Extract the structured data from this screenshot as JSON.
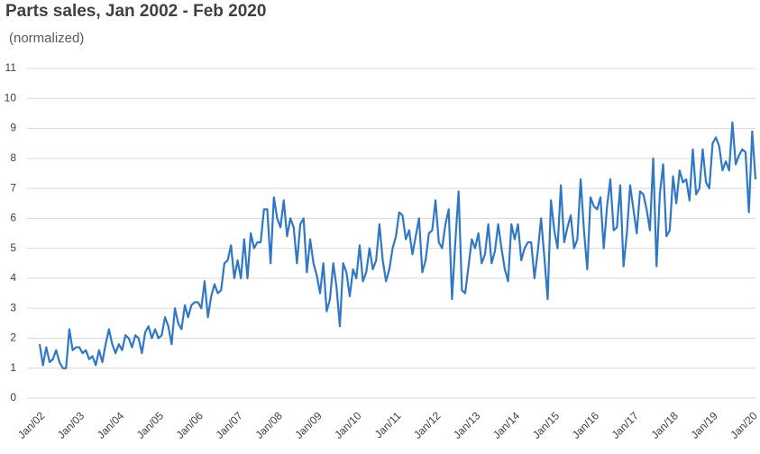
{
  "chart_data": {
    "type": "line",
    "title": "Parts sales, Jan 2002 - Feb 2020",
    "subtitle": "(normalized)",
    "color": "#2f78c8",
    "grid": true,
    "ylim": [
      0,
      11
    ],
    "yticks": [
      0,
      1,
      2,
      3,
      4,
      5,
      6,
      7,
      8,
      9,
      10,
      11
    ],
    "categories": [
      "Jan/02",
      null,
      null,
      null,
      null,
      null,
      null,
      null,
      null,
      null,
      null,
      null,
      "Jan/03",
      null,
      null,
      null,
      null,
      null,
      null,
      null,
      null,
      null,
      null,
      null,
      "Jan/04",
      null,
      null,
      null,
      null,
      null,
      null,
      null,
      null,
      null,
      null,
      null,
      "Jan/05",
      null,
      null,
      null,
      null,
      null,
      null,
      null,
      null,
      null,
      null,
      null,
      "Jan/06",
      null,
      null,
      null,
      null,
      null,
      null,
      null,
      null,
      null,
      null,
      null,
      "Jan/07",
      null,
      null,
      null,
      null,
      null,
      null,
      null,
      null,
      null,
      null,
      null,
      "Jan/08",
      null,
      null,
      null,
      null,
      null,
      null,
      null,
      null,
      null,
      null,
      null,
      "Jan/09",
      null,
      null,
      null,
      null,
      null,
      null,
      null,
      null,
      null,
      null,
      null,
      "Jan/10",
      null,
      null,
      null,
      null,
      null,
      null,
      null,
      null,
      null,
      null,
      null,
      "Jan/11",
      null,
      null,
      null,
      null,
      null,
      null,
      null,
      null,
      null,
      null,
      null,
      "Jan/12",
      null,
      null,
      null,
      null,
      null,
      null,
      null,
      null,
      null,
      null,
      null,
      "Jan/13",
      null,
      null,
      null,
      null,
      null,
      null,
      null,
      null,
      null,
      null,
      null,
      "Jan/14",
      null,
      null,
      null,
      null,
      null,
      null,
      null,
      null,
      null,
      null,
      null,
      "Jan/15",
      null,
      null,
      null,
      null,
      null,
      null,
      null,
      null,
      null,
      null,
      null,
      "Jan/16",
      null,
      null,
      null,
      null,
      null,
      null,
      null,
      null,
      null,
      null,
      null,
      "Jan/17",
      null,
      null,
      null,
      null,
      null,
      null,
      null,
      null,
      null,
      null,
      null,
      "Jan/18",
      null,
      null,
      null,
      null,
      null,
      null,
      null,
      null,
      null,
      null,
      null,
      "Jan/19",
      null,
      null,
      null,
      null,
      null,
      null,
      null,
      null,
      null,
      null,
      null,
      "Jan/20",
      null
    ],
    "values": [
      1.8,
      1.1,
      1.7,
      1.2,
      1.3,
      1.6,
      1.2,
      1.0,
      1.0,
      2.3,
      1.6,
      1.7,
      1.7,
      1.5,
      1.6,
      1.3,
      1.4,
      1.1,
      1.6,
      1.2,
      1.8,
      2.3,
      1.8,
      1.5,
      1.8,
      1.6,
      2.1,
      2.0,
      1.7,
      2.1,
      2.0,
      1.5,
      2.2,
      2.4,
      2.0,
      2.3,
      2.0,
      2.1,
      2.7,
      2.4,
      1.8,
      3.0,
      2.5,
      2.3,
      3.1,
      2.7,
      3.1,
      3.2,
      3.2,
      3.0,
      3.9,
      2.7,
      3.4,
      3.8,
      3.5,
      3.6,
      4.5,
      4.6,
      5.1,
      4.0,
      4.6,
      4.0,
      5.3,
      4.0,
      5.5,
      5.0,
      5.2,
      5.2,
      6.3,
      6.3,
      4.5,
      6.7,
      6.0,
      5.7,
      6.6,
      5.4,
      6.0,
      5.7,
      4.5,
      5.8,
      6.0,
      4.2,
      5.3,
      4.5,
      4.1,
      3.5,
      4.5,
      2.9,
      3.3,
      4.5,
      3.7,
      2.4,
      4.5,
      4.2,
      3.4,
      4.3,
      4.0,
      5.1,
      3.9,
      4.2,
      5.0,
      4.3,
      4.6,
      5.8,
      4.6,
      3.9,
      4.3,
      5.0,
      5.4,
      6.2,
      6.1,
      5.3,
      5.6,
      4.8,
      5.4,
      6.0,
      4.2,
      4.6,
      5.5,
      5.6,
      6.6,
      5.2,
      5.0,
      5.8,
      6.3,
      3.3,
      5.2,
      6.9,
      3.6,
      3.5,
      4.4,
      5.3,
      5.0,
      5.5,
      4.5,
      4.8,
      5.8,
      4.5,
      4.9,
      5.8,
      5.0,
      4.3,
      3.9,
      5.8,
      5.3,
      5.8,
      4.6,
      5.0,
      5.2,
      5.2,
      4.0,
      4.9,
      6.0,
      4.7,
      3.3,
      6.6,
      5.6,
      5.0,
      7.1,
      5.2,
      5.7,
      6.1,
      5.0,
      5.3,
      7.3,
      5.6,
      4.3,
      6.7,
      6.4,
      6.3,
      6.7,
      5.0,
      6.4,
      7.3,
      5.6,
      5.7,
      7.1,
      4.4,
      5.5,
      7.1,
      6.3,
      5.5,
      6.9,
      6.8,
      6.3,
      5.6,
      8.0,
      4.4,
      6.8,
      7.8,
      5.4,
      5.6,
      7.4,
      6.5,
      7.6,
      7.2,
      7.3,
      6.6,
      8.3,
      6.8,
      7.0,
      8.3,
      7.2,
      7.0,
      8.5,
      8.7,
      8.4,
      7.6,
      7.9,
      7.6,
      9.2,
      7.8,
      8.1,
      8.3,
      8.2,
      6.2,
      8.9,
      7.3
    ]
  }
}
